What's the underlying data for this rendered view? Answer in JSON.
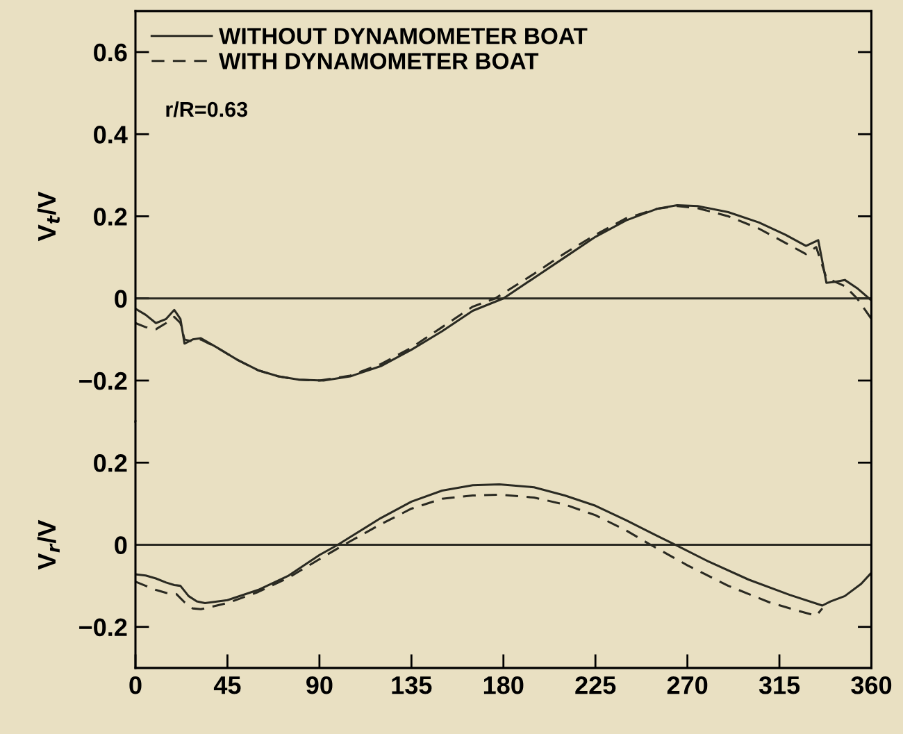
{
  "chart_data": [
    {
      "type": "line",
      "ylabel": "V$_{t}$/V",
      "xlim": [
        0,
        360
      ],
      "ylim": [
        -0.3,
        0.7
      ],
      "yticks": [
        {
          "value": 0.6,
          "label": "0.6"
        },
        {
          "value": 0.4,
          "label": "0.4"
        },
        {
          "value": 0.2,
          "label": "0.2"
        },
        {
          "value": 0,
          "label": "0"
        },
        {
          "value": -0.2,
          "label": "−0.2"
        }
      ],
      "tick_labels": "y",
      "legend": "top left",
      "grid": false,
      "annotations": [
        "r/R=0.63"
      ],
      "ref_lines": [
        {
          "axis": "y",
          "value": 0,
          "color": "#2a2a22"
        }
      ],
      "series": [
        {
          "name": "WITHOUT DYNAMOMETER BOAT",
          "color": "#2a2a22",
          "line_style": "solid",
          "x": [
            0,
            5,
            10,
            15,
            19,
            22,
            24,
            28,
            32,
            40,
            50,
            60,
            70,
            80,
            92,
            105,
            120,
            135,
            150,
            165,
            180,
            195,
            210,
            225,
            240,
            255,
            265,
            275,
            290,
            305,
            318,
            328,
            334,
            338,
            342,
            347,
            353,
            360
          ],
          "values": [
            -0.025,
            -0.04,
            -0.06,
            -0.05,
            -0.028,
            -0.05,
            -0.11,
            -0.1,
            -0.097,
            -0.12,
            -0.15,
            -0.175,
            -0.19,
            -0.198,
            -0.2,
            -0.19,
            -0.165,
            -0.125,
            -0.08,
            -0.03,
            0.0,
            0.05,
            0.1,
            0.15,
            0.19,
            0.218,
            0.227,
            0.225,
            0.21,
            0.185,
            0.155,
            0.128,
            0.142,
            0.038,
            0.04,
            0.045,
            0.025,
            -0.005
          ]
        },
        {
          "name": "WITH DYNAMOMETER BOAT",
          "color": "#2a2a22",
          "line_style": "dashed",
          "x": [
            0,
            5,
            10,
            15,
            19,
            22,
            24,
            28,
            32,
            40,
            50,
            60,
            70,
            80,
            90,
            105,
            120,
            135,
            150,
            165,
            176,
            195,
            210,
            225,
            240,
            255,
            265,
            275,
            290,
            305,
            318,
            328,
            333,
            338,
            347,
            353,
            360
          ],
          "values": [
            -0.06,
            -0.07,
            -0.075,
            -0.06,
            -0.045,
            -0.06,
            -0.1,
            -0.105,
            -0.1,
            -0.12,
            -0.15,
            -0.175,
            -0.19,
            -0.198,
            -0.2,
            -0.188,
            -0.16,
            -0.12,
            -0.07,
            -0.02,
            0.0,
            0.06,
            0.11,
            0.155,
            0.195,
            0.218,
            0.225,
            0.22,
            0.2,
            0.17,
            0.135,
            0.108,
            0.125,
            0.05,
            0.03,
            0.0,
            -0.05
          ]
        }
      ]
    },
    {
      "type": "line",
      "ylabel": "V$_{r}$/V",
      "xlim": [
        0,
        360
      ],
      "ylim": [
        -0.3,
        0.3
      ],
      "xticks": [
        0,
        45,
        90,
        135,
        180,
        225,
        270,
        315,
        360
      ],
      "yticks": [
        {
          "value": 0.2,
          "label": "0.2"
        },
        {
          "value": 0,
          "label": "0"
        },
        {
          "value": -0.2,
          "label": "−0.2"
        }
      ],
      "legend": false,
      "grid": false,
      "ref_lines": [
        {
          "axis": "y",
          "value": 0,
          "color": "#2a2a22"
        }
      ],
      "series": [
        {
          "color": "#2a2a22",
          "line_style": "solid",
          "x": [
            0,
            5,
            10,
            15,
            19,
            22,
            26,
            30,
            34,
            45,
            60,
            75,
            90,
            99,
            120,
            135,
            150,
            165,
            178,
            195,
            210,
            225,
            240,
            255,
            264,
            280,
            300,
            320,
            336,
            340,
            347,
            355,
            360
          ],
          "values": [
            -0.072,
            -0.075,
            -0.082,
            -0.092,
            -0.098,
            -0.1,
            -0.125,
            -0.138,
            -0.142,
            -0.135,
            -0.11,
            -0.075,
            -0.025,
            0.0,
            0.065,
            0.105,
            0.132,
            0.145,
            0.147,
            0.14,
            0.12,
            0.095,
            0.06,
            0.022,
            0.0,
            -0.04,
            -0.085,
            -0.122,
            -0.148,
            -0.138,
            -0.125,
            -0.095,
            -0.068
          ]
        },
        {
          "color": "#2a2a22",
          "line_style": "dashed",
          "x": [
            0,
            5,
            10,
            15,
            20,
            24,
            28,
            32,
            45,
            60,
            75,
            90,
            102,
            120,
            135,
            150,
            165,
            178,
            195,
            210,
            225,
            240,
            252,
            270,
            290,
            310,
            325,
            333,
            336
          ],
          "values": [
            -0.09,
            -0.1,
            -0.11,
            -0.117,
            -0.12,
            -0.14,
            -0.155,
            -0.157,
            -0.142,
            -0.115,
            -0.08,
            -0.035,
            0.0,
            0.05,
            0.088,
            0.112,
            0.12,
            0.122,
            0.115,
            0.098,
            0.072,
            0.035,
            0.0,
            -0.05,
            -0.1,
            -0.14,
            -0.162,
            -0.173,
            -0.155
          ]
        }
      ]
    }
  ]
}
